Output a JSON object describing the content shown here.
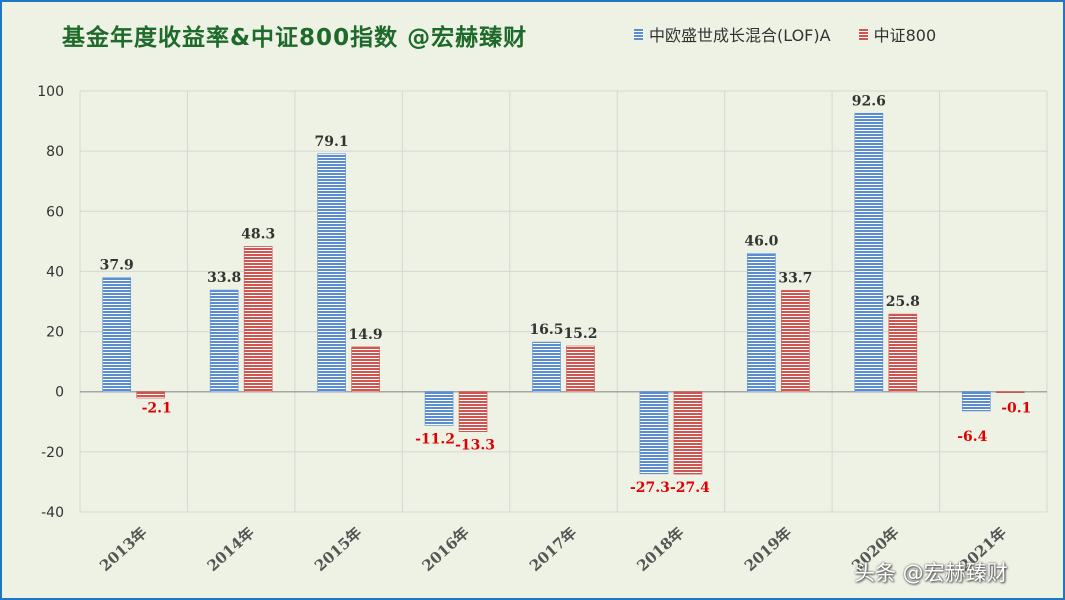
{
  "title": "基金年度收益率&中证800指数 @宏赫臻财",
  "watermark": "头条 @宏赫臻财",
  "colors": {
    "fund": "#5b8ed1",
    "fund_stripe": "#ffffff",
    "index": "#cf5550",
    "index_stripe": "#ffffff",
    "grid": "#d6d6d6",
    "axis": "#a6a6a6",
    "label_positive": "#333333",
    "label_negative": "#e00000"
  },
  "chart_data": {
    "type": "bar",
    "categories": [
      "2013年",
      "2014年",
      "2015年",
      "2016年",
      "2017年",
      "2018年",
      "2019年",
      "2020年",
      "2021年"
    ],
    "series": [
      {
        "name": "中欧盛世成长混合(LOF)A",
        "values": [
          37.9,
          33.8,
          79.1,
          -11.2,
          16.5,
          -27.3,
          46.0,
          92.6,
          -6.4
        ],
        "labels": [
          "37.9",
          "33.8",
          "79.1",
          "-11.2",
          "16.5",
          "-27.3",
          "46.0",
          "92.6",
          "-6.4"
        ]
      },
      {
        "name": "中证800",
        "values": [
          -2.1,
          48.3,
          14.9,
          -13.3,
          15.2,
          -27.4,
          33.7,
          25.8,
          -0.1
        ],
        "labels": [
          "-2.1",
          "48.3",
          "14.9",
          "-13.3",
          "15.2",
          "-27.4",
          "33.7",
          "25.8",
          "-0.1"
        ]
      }
    ],
    "ylim": [
      -40,
      100
    ],
    "yticks": [
      -40,
      -20,
      0,
      20,
      40,
      60,
      80,
      100
    ],
    "grid": true,
    "legend": "top-right"
  }
}
